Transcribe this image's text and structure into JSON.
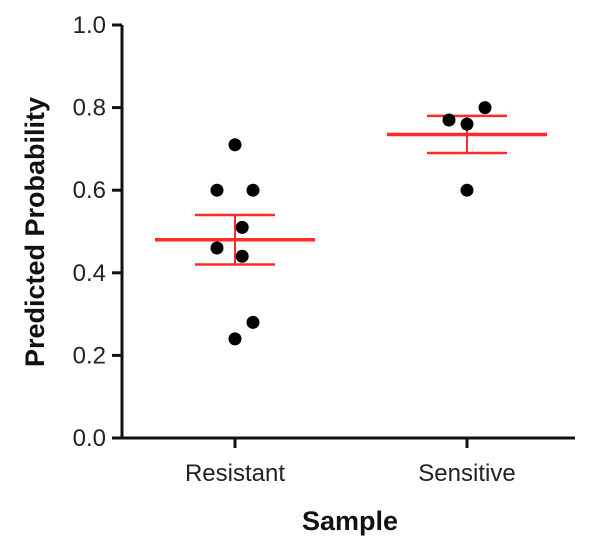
{
  "chart_data": {
    "type": "scatter",
    "xlabel": "Sample",
    "ylabel": "Predicted Probability",
    "categories": [
      "Resistant",
      "Sensitive"
    ],
    "ylim": [
      0.0,
      1.0
    ],
    "yticks": [
      "0.0",
      "0.2",
      "0.4",
      "0.6",
      "0.8",
      "1.0"
    ],
    "grid": false,
    "colors": {
      "points": "#000000",
      "summary": "#ff2a2a",
      "axis": "#111111"
    },
    "groups": [
      {
        "category": "Resistant",
        "points": [
          {
            "offset": 0.0,
            "y": 0.71
          },
          {
            "offset": -0.15,
            "y": 0.6
          },
          {
            "offset": 0.15,
            "y": 0.6
          },
          {
            "offset": 0.06,
            "y": 0.51
          },
          {
            "offset": -0.15,
            "y": 0.46
          },
          {
            "offset": 0.06,
            "y": 0.44
          },
          {
            "offset": 0.15,
            "y": 0.28
          },
          {
            "offset": 0.0,
            "y": 0.24
          }
        ],
        "mean": 0.48,
        "sem_upper": 0.54,
        "sem_lower": 0.42
      },
      {
        "category": "Sensitive",
        "points": [
          {
            "offset": -0.15,
            "y": 0.77
          },
          {
            "offset": 0.15,
            "y": 0.8
          },
          {
            "offset": 0.0,
            "y": 0.76
          },
          {
            "offset": 0.0,
            "y": 0.6
          }
        ],
        "mean": 0.735,
        "sem_upper": 0.78,
        "sem_lower": 0.69
      }
    ]
  }
}
